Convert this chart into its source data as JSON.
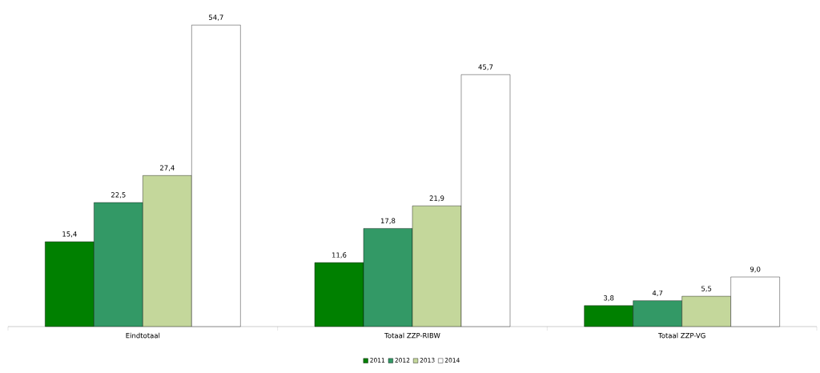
{
  "chart_data": {
    "type": "bar",
    "categories": [
      "Eindtotaal",
      "Totaal ZZP-RIBW",
      "Totaal ZZP-VG"
    ],
    "series": [
      {
        "name": "2011",
        "color": "#008000",
        "values": [
          15.4,
          11.6,
          3.8
        ],
        "value_labels": [
          "15,4",
          "11,6",
          "3,8"
        ]
      },
      {
        "name": "2012",
        "color": "#339966",
        "values": [
          22.5,
          17.8,
          4.7
        ],
        "value_labels": [
          "22,5",
          "17,8",
          "4,7"
        ]
      },
      {
        "name": "2013",
        "color": "#c4d79b",
        "values": [
          27.4,
          21.9,
          5.5
        ],
        "value_labels": [
          "27,4",
          "21,9",
          "5,5"
        ]
      },
      {
        "name": "2014",
        "color": "#ffffff",
        "values": [
          54.7,
          45.7,
          9.0
        ],
        "value_labels": [
          "54,7",
          "45,7",
          "9,0"
        ]
      }
    ],
    "legend": "bottom"
  }
}
